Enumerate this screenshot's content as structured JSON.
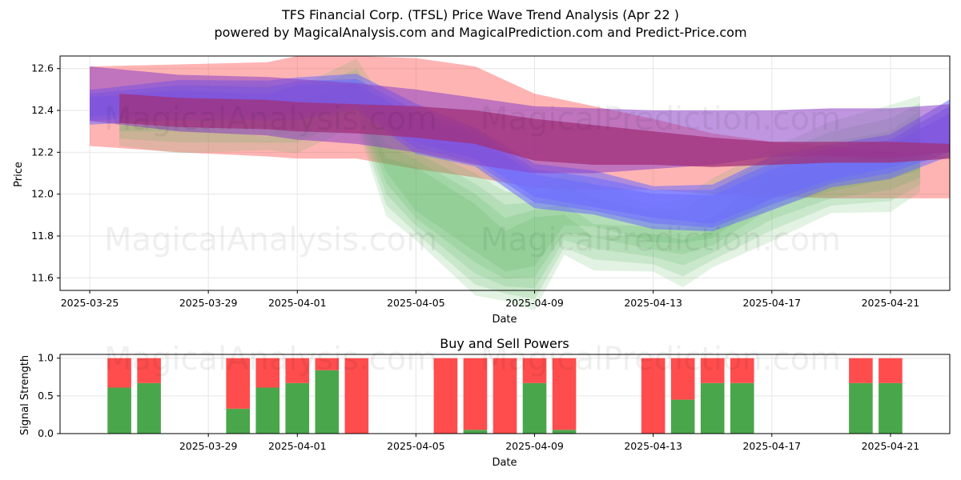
{
  "figure": {
    "title_line1": "TFS Financial Corp. (TFSL) Price Wave Trend Analysis (Apr 22 )",
    "title_line2": "powered by MagicalAnalysis.com and MagicalPrediction.com and Predict-Price.com"
  },
  "watermarks": [
    "MagicalAnalysis.com",
    "MagicalPrediction.com"
  ],
  "colors": {
    "red_band": "#ff4d4d",
    "green_band": "#4caf50",
    "blue_band": "#6b6bff",
    "purple_band": "#8a3fc4",
    "magenta_band": "#a0307a",
    "buy": "#4aa64a",
    "sell": "#ff4d4d",
    "grid": "#e6e6e6"
  },
  "chart_data": [
    {
      "type": "area",
      "title": "",
      "xlabel": "Date",
      "ylabel": "Price",
      "xlim": [
        "2025-03-24",
        "2025-04-23"
      ],
      "ylim": [
        11.54,
        12.66
      ],
      "x_ticks": [
        "2025-03-25",
        "2025-03-29",
        "2025-04-01",
        "2025-04-05",
        "2025-04-09",
        "2025-04-13",
        "2025-04-17",
        "2025-04-21"
      ],
      "y_ticks": [
        11.6,
        11.8,
        12.0,
        12.2,
        12.4,
        12.6
      ],
      "grid": true,
      "series": [
        {
          "color": "red",
          "x": [
            "2025-03-25",
            "2025-03-28",
            "2025-03-31",
            "2025-04-01",
            "2025-04-03",
            "2025-04-05",
            "2025-04-07",
            "2025-04-09",
            "2025-04-11",
            "2025-04-13",
            "2025-04-15",
            "2025-04-17",
            "2025-04-19",
            "2025-04-21",
            "2025-04-23"
          ],
          "upper": [
            12.61,
            12.62,
            12.63,
            12.66,
            12.66,
            12.65,
            12.61,
            12.48,
            12.42,
            12.36,
            12.29,
            12.25,
            12.23,
            12.2,
            12.18
          ],
          "lower": [
            12.23,
            12.2,
            12.18,
            12.17,
            12.17,
            12.12,
            12.08,
            12.03,
            12.02,
            12.02,
            12.0,
            11.99,
            11.98,
            11.98,
            11.98
          ]
        },
        {
          "color": "green",
          "x": [
            "2025-03-26",
            "2025-03-28",
            "2025-03-31",
            "2025-04-01",
            "2025-04-03",
            "2025-04-04",
            "2025-04-05",
            "2025-04-07",
            "2025-04-08",
            "2025-04-09",
            "2025-04-10",
            "2025-04-11",
            "2025-04-13",
            "2025-04-14",
            "2025-04-15",
            "2025-04-17",
            "2025-04-19",
            "2025-04-21",
            "2025-04-22"
          ],
          "upper": [
            12.4,
            12.42,
            12.4,
            12.44,
            12.55,
            12.3,
            12.2,
            12.05,
            11.95,
            11.96,
            12.0,
            11.92,
            11.88,
            11.88,
            11.95,
            12.15,
            12.25,
            12.3,
            12.4
          ],
          "lower": [
            12.3,
            12.3,
            12.28,
            12.3,
            12.4,
            12.0,
            11.85,
            11.62,
            11.56,
            11.55,
            11.78,
            11.74,
            11.7,
            11.66,
            11.72,
            11.88,
            11.98,
            12.02,
            12.08
          ]
        },
        {
          "color": "blue",
          "x": [
            "2025-03-25",
            "2025-03-28",
            "2025-03-31",
            "2025-04-01",
            "2025-04-03",
            "2025-04-05",
            "2025-04-07",
            "2025-04-09",
            "2025-04-11",
            "2025-04-13",
            "2025-04-15",
            "2025-04-17",
            "2025-04-19",
            "2025-04-21",
            "2025-04-23"
          ],
          "upper": [
            12.48,
            12.52,
            12.51,
            12.54,
            12.55,
            12.4,
            12.3,
            12.12,
            12.08,
            12.02,
            12.02,
            12.15,
            12.22,
            12.26,
            12.42
          ],
          "lower": [
            12.35,
            12.38,
            12.37,
            12.38,
            12.42,
            12.22,
            12.15,
            11.96,
            11.92,
            11.86,
            11.84,
            11.95,
            12.05,
            12.1,
            12.2
          ]
        },
        {
          "color": "purple",
          "x": [
            "2025-03-25",
            "2025-03-28",
            "2025-03-31",
            "2025-04-01",
            "2025-04-03",
            "2025-04-05",
            "2025-04-07",
            "2025-04-09",
            "2025-04-11",
            "2025-04-13",
            "2025-04-15",
            "2025-04-17",
            "2025-04-19",
            "2025-04-21",
            "2025-04-23"
          ],
          "upper": [
            12.61,
            12.57,
            12.56,
            12.55,
            12.53,
            12.5,
            12.46,
            12.42,
            12.41,
            12.4,
            12.4,
            12.4,
            12.41,
            12.41,
            12.43
          ],
          "lower": [
            12.35,
            12.3,
            12.28,
            12.26,
            12.24,
            12.2,
            12.14,
            12.1,
            12.1,
            12.12,
            12.14,
            12.18,
            12.18,
            12.17,
            12.2
          ]
        },
        {
          "color": "magenta",
          "x": [
            "2025-03-26",
            "2025-03-28",
            "2025-03-31",
            "2025-04-01",
            "2025-04-03",
            "2025-04-05",
            "2025-04-07",
            "2025-04-09",
            "2025-04-11",
            "2025-04-13",
            "2025-04-15",
            "2025-04-17",
            "2025-04-19",
            "2025-04-21",
            "2025-04-23"
          ],
          "upper": [
            12.48,
            12.46,
            12.45,
            12.44,
            12.43,
            12.42,
            12.4,
            12.36,
            12.33,
            12.3,
            12.27,
            12.25,
            12.25,
            12.25,
            12.24
          ],
          "lower": [
            12.34,
            12.32,
            12.31,
            12.3,
            12.29,
            12.27,
            12.24,
            12.16,
            12.14,
            12.14,
            12.13,
            12.14,
            12.15,
            12.15,
            12.17
          ]
        }
      ]
    },
    {
      "type": "bar",
      "title": "Buy and Sell Powers",
      "xlabel": "Date",
      "ylabel": "Signal Strength",
      "xlim": [
        "2025-03-24",
        "2025-04-23"
      ],
      "ylim": [
        0,
        1.05
      ],
      "x_ticks": [
        "2025-03-29",
        "2025-04-01",
        "2025-04-05",
        "2025-04-09",
        "2025-04-13",
        "2025-04-17",
        "2025-04-21"
      ],
      "y_ticks": [
        0.0,
        0.5,
        1.0
      ],
      "grid": true,
      "categories": [
        "2025-03-26",
        "2025-03-27",
        "2025-03-30",
        "2025-03-31",
        "2025-04-01",
        "2025-04-02",
        "2025-04-03",
        "2025-04-06",
        "2025-04-07",
        "2025-04-08",
        "2025-04-09",
        "2025-04-10",
        "2025-04-13",
        "2025-04-14",
        "2025-04-15",
        "2025-04-16",
        "2025-04-20",
        "2025-04-21"
      ],
      "series": [
        {
          "name": "Buy",
          "values": [
            0.61,
            0.67,
            0.33,
            0.61,
            0.67,
            0.84,
            0.0,
            0.0,
            0.05,
            0.0,
            0.67,
            0.05,
            0.0,
            0.45,
            0.67,
            0.67,
            0.67,
            0.67
          ]
        },
        {
          "name": "Sell",
          "values": [
            0.39,
            0.33,
            0.67,
            0.39,
            0.33,
            0.16,
            1.0,
            1.0,
            0.95,
            1.0,
            0.33,
            0.95,
            1.0,
            0.55,
            0.33,
            0.33,
            0.33,
            0.33
          ]
        }
      ]
    }
  ]
}
